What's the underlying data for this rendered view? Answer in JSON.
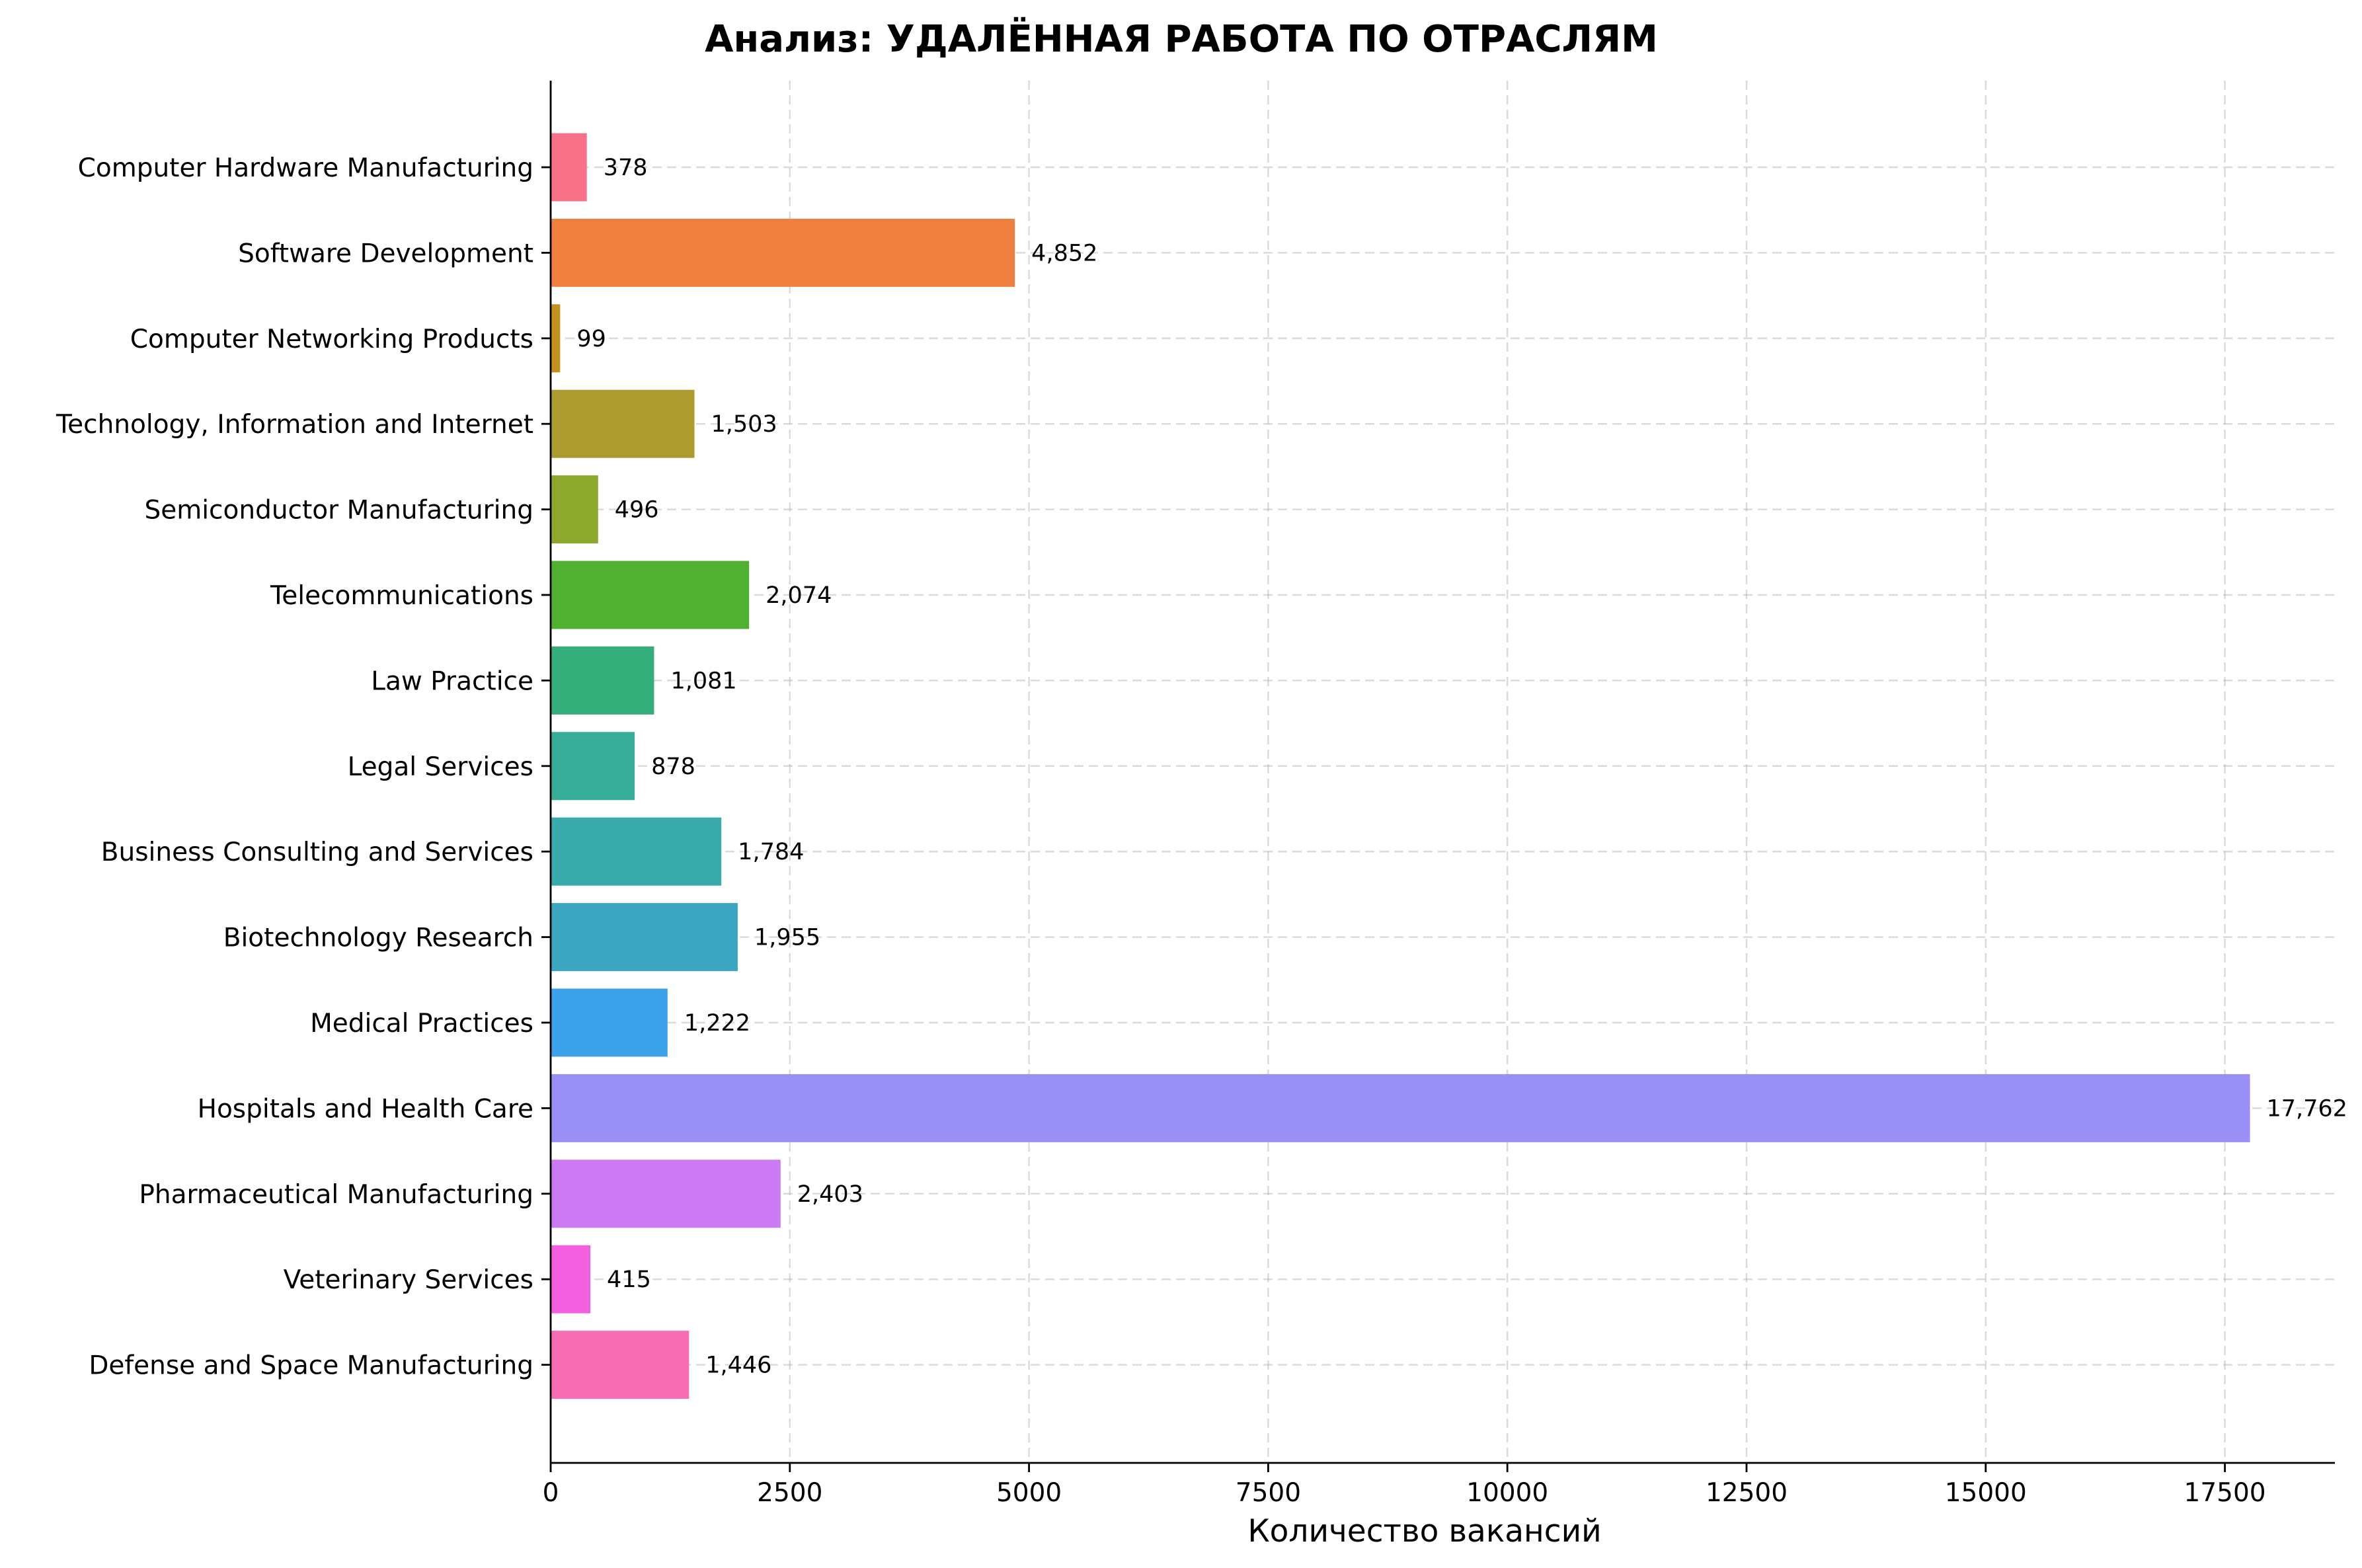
{
  "chart_data": {
    "type": "bar",
    "orientation": "horizontal",
    "title": "Анализ: УДАЛЁННАЯ РАБОТА ПО ОТРАСЛЯМ",
    "xlabel": "Количество вакансий",
    "ylabel": "",
    "xlim": [
      0,
      18650
    ],
    "xticks": [
      0,
      2500,
      5000,
      7500,
      10000,
      12500,
      15000,
      17500
    ],
    "grid": true,
    "categories": [
      "Computer Hardware Manufacturing",
      "Software Development",
      "Computer Networking Products",
      "Technology, Information and Internet",
      "Semiconductor Manufacturing",
      "Telecommunications",
      "Law Practice",
      "Legal Services",
      "Business Consulting and Services",
      "Biotechnology Research",
      "Medical Practices",
      "Hospitals and Health Care",
      "Pharmaceutical Manufacturing",
      "Veterinary Services",
      "Defense and Space Manufacturing"
    ],
    "values": [
      378,
      4852,
      99,
      1503,
      496,
      2074,
      1081,
      878,
      1784,
      1955,
      1222,
      17762,
      2403,
      415,
      1446
    ],
    "value_labels": [
      "378",
      "4,852",
      "99",
      "1,503",
      "496",
      "2,074",
      "1,081",
      "878",
      "1,784",
      "1,955",
      "1,222",
      "17,762",
      "2,403",
      "415",
      "1,446"
    ],
    "colors": [
      "#f77189",
      "#f0803f",
      "#c4911f",
      "#ac9b2e",
      "#8ea82d",
      "#50b131",
      "#34ae7b",
      "#36ad96",
      "#38aaab",
      "#3aa6c0",
      "#3ba3ec",
      "#9a8ff4",
      "#cc79f4",
      "#f45fe0",
      "#f66db4"
    ]
  }
}
